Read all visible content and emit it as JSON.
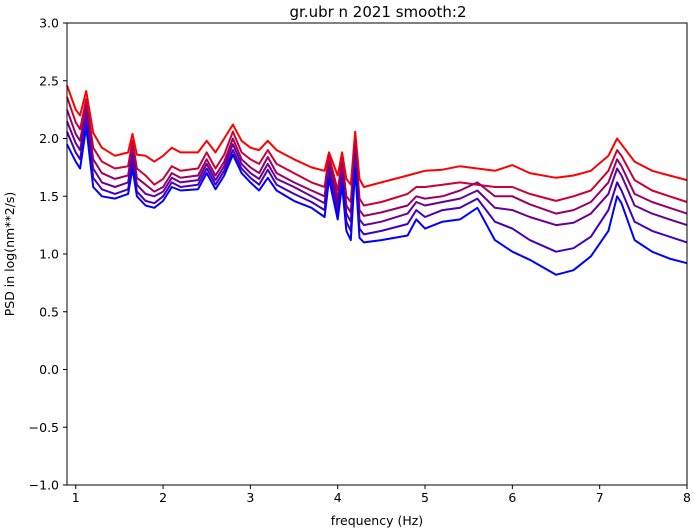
{
  "chart_data": {
    "type": "line",
    "title": "gr.ubr n 2021 smooth:2",
    "xlabel": "frequency (Hz)",
    "ylabel": "PSD in log(nm**2/s)",
    "xlim": [
      0.9,
      8.0
    ],
    "ylim": [
      -1.0,
      3.0
    ],
    "xticks": [
      "1",
      "2",
      "3",
      "4",
      "5",
      "6",
      "7",
      "8"
    ],
    "yticks": [
      "−1.0",
      "−0.5",
      "0.0",
      "0.5",
      "1.0",
      "1.5",
      "2.0",
      "2.5",
      "3.0"
    ],
    "grid": false,
    "legend": "none",
    "series": [
      {
        "color": "#ff0000",
        "x": [
          0.9,
          1.0,
          1.05,
          1.12,
          1.2,
          1.3,
          1.45,
          1.6,
          1.65,
          1.7,
          1.8,
          1.9,
          2.0,
          2.1,
          2.2,
          2.4,
          2.5,
          2.6,
          2.7,
          2.8,
          2.9,
          3.0,
          3.1,
          3.2,
          3.3,
          3.5,
          3.7,
          3.85,
          3.9,
          4.0,
          4.05,
          4.1,
          4.15,
          4.2,
          4.25,
          4.3,
          4.5,
          4.8,
          4.9,
          5.0,
          5.2,
          5.4,
          5.6,
          5.8,
          6.0,
          6.2,
          6.5,
          6.7,
          6.9,
          7.1,
          7.2,
          7.25,
          7.4,
          7.6,
          7.8,
          8.0
        ],
        "y": [
          2.46,
          2.25,
          2.2,
          2.41,
          2.05,
          1.92,
          1.85,
          1.88,
          2.04,
          1.86,
          1.85,
          1.8,
          1.85,
          1.92,
          1.88,
          1.88,
          1.98,
          1.88,
          2.0,
          2.12,
          1.98,
          1.92,
          1.9,
          1.98,
          1.9,
          1.82,
          1.75,
          1.72,
          1.88,
          1.68,
          1.88,
          1.65,
          1.6,
          2.06,
          1.65,
          1.58,
          1.62,
          1.68,
          1.7,
          1.72,
          1.73,
          1.76,
          1.74,
          1.72,
          1.77,
          1.7,
          1.66,
          1.68,
          1.72,
          1.85,
          2.0,
          1.95,
          1.8,
          1.72,
          1.68,
          1.64
        ]
      },
      {
        "color": "#cc0033",
        "x": [
          0.9,
          1.0,
          1.05,
          1.12,
          1.2,
          1.3,
          1.45,
          1.6,
          1.65,
          1.7,
          1.8,
          1.9,
          2.0,
          2.1,
          2.2,
          2.4,
          2.5,
          2.6,
          2.7,
          2.8,
          2.9,
          3.0,
          3.1,
          3.2,
          3.3,
          3.5,
          3.7,
          3.85,
          3.9,
          4.0,
          4.05,
          4.1,
          4.15,
          4.2,
          4.25,
          4.3,
          4.5,
          4.8,
          4.9,
          5.0,
          5.2,
          5.4,
          5.6,
          5.8,
          6.0,
          6.2,
          6.5,
          6.7,
          6.9,
          7.1,
          7.2,
          7.25,
          7.4,
          7.6,
          7.8,
          8.0
        ],
        "y": [
          2.36,
          2.14,
          2.08,
          2.34,
          1.92,
          1.8,
          1.74,
          1.76,
          1.98,
          1.74,
          1.68,
          1.6,
          1.65,
          1.76,
          1.72,
          1.74,
          1.88,
          1.74,
          1.86,
          2.06,
          1.88,
          1.82,
          1.78,
          1.9,
          1.78,
          1.7,
          1.62,
          1.58,
          1.85,
          1.55,
          1.82,
          1.5,
          1.45,
          1.98,
          1.48,
          1.42,
          1.45,
          1.52,
          1.58,
          1.58,
          1.6,
          1.62,
          1.6,
          1.58,
          1.58,
          1.52,
          1.46,
          1.5,
          1.55,
          1.72,
          1.9,
          1.85,
          1.64,
          1.55,
          1.5,
          1.45
        ]
      },
      {
        "color": "#990066",
        "x": [
          0.9,
          1.0,
          1.05,
          1.12,
          1.2,
          1.3,
          1.45,
          1.6,
          1.65,
          1.7,
          1.8,
          1.9,
          2.0,
          2.1,
          2.2,
          2.4,
          2.5,
          2.6,
          2.7,
          2.8,
          2.9,
          3.0,
          3.1,
          3.2,
          3.3,
          3.5,
          3.7,
          3.85,
          3.9,
          4.0,
          4.05,
          4.1,
          4.15,
          4.2,
          4.25,
          4.3,
          4.5,
          4.8,
          4.9,
          5.0,
          5.2,
          5.4,
          5.6,
          5.8,
          6.0,
          6.2,
          6.5,
          6.7,
          6.9,
          7.1,
          7.2,
          7.25,
          7.4,
          7.6,
          7.8,
          8.0
        ],
        "y": [
          2.25,
          2.04,
          1.98,
          2.28,
          1.82,
          1.7,
          1.65,
          1.68,
          1.92,
          1.66,
          1.6,
          1.54,
          1.58,
          1.7,
          1.66,
          1.68,
          1.82,
          1.68,
          1.8,
          2.0,
          1.82,
          1.75,
          1.7,
          1.84,
          1.7,
          1.62,
          1.55,
          1.5,
          1.8,
          1.48,
          1.78,
          1.42,
          1.36,
          1.92,
          1.38,
          1.33,
          1.36,
          1.42,
          1.5,
          1.48,
          1.5,
          1.55,
          1.62,
          1.5,
          1.5,
          1.43,
          1.35,
          1.38,
          1.45,
          1.62,
          1.82,
          1.76,
          1.52,
          1.45,
          1.4,
          1.35
        ]
      },
      {
        "color": "#660099",
        "x": [
          0.9,
          1.0,
          1.05,
          1.12,
          1.2,
          1.3,
          1.45,
          1.6,
          1.65,
          1.7,
          1.8,
          1.9,
          2.0,
          2.1,
          2.2,
          2.4,
          2.5,
          2.6,
          2.7,
          2.8,
          2.9,
          3.0,
          3.1,
          3.2,
          3.3,
          3.5,
          3.7,
          3.85,
          3.9,
          4.0,
          4.05,
          4.1,
          4.15,
          4.2,
          4.25,
          4.3,
          4.5,
          4.8,
          4.9,
          5.0,
          5.2,
          5.4,
          5.6,
          5.8,
          6.0,
          6.2,
          6.5,
          6.7,
          6.9,
          7.1,
          7.2,
          7.25,
          7.4,
          7.6,
          7.8,
          8.0
        ],
        "y": [
          2.15,
          1.96,
          1.9,
          2.22,
          1.74,
          1.62,
          1.58,
          1.62,
          1.86,
          1.6,
          1.52,
          1.5,
          1.54,
          1.66,
          1.62,
          1.64,
          1.78,
          1.64,
          1.76,
          1.95,
          1.78,
          1.7,
          1.65,
          1.78,
          1.65,
          1.58,
          1.5,
          1.44,
          1.75,
          1.42,
          1.72,
          1.35,
          1.28,
          1.86,
          1.3,
          1.25,
          1.28,
          1.35,
          1.45,
          1.42,
          1.45,
          1.48,
          1.55,
          1.4,
          1.38,
          1.32,
          1.25,
          1.27,
          1.35,
          1.52,
          1.74,
          1.68,
          1.42,
          1.35,
          1.3,
          1.25
        ]
      },
      {
        "color": "#4400bb",
        "x": [
          0.9,
          1.0,
          1.05,
          1.12,
          1.2,
          1.3,
          1.45,
          1.6,
          1.65,
          1.7,
          1.8,
          1.9,
          2.0,
          2.1,
          2.2,
          2.4,
          2.5,
          2.6,
          2.7,
          2.8,
          2.9,
          3.0,
          3.1,
          3.2,
          3.3,
          3.5,
          3.7,
          3.85,
          3.9,
          4.0,
          4.05,
          4.1,
          4.15,
          4.2,
          4.25,
          4.3,
          4.5,
          4.8,
          4.9,
          5.0,
          5.2,
          5.4,
          5.6,
          5.8,
          6.0,
          6.2,
          6.5,
          6.7,
          6.9,
          7.1,
          7.2,
          7.25,
          7.4,
          7.6,
          7.8,
          8.0
        ],
        "y": [
          2.06,
          1.88,
          1.82,
          2.16,
          1.66,
          1.56,
          1.52,
          1.56,
          1.8,
          1.54,
          1.46,
          1.44,
          1.5,
          1.62,
          1.58,
          1.6,
          1.74,
          1.6,
          1.72,
          1.9,
          1.74,
          1.66,
          1.6,
          1.73,
          1.6,
          1.52,
          1.45,
          1.38,
          1.7,
          1.36,
          1.66,
          1.28,
          1.2,
          1.8,
          1.22,
          1.17,
          1.2,
          1.26,
          1.38,
          1.32,
          1.38,
          1.4,
          1.48,
          1.28,
          1.22,
          1.12,
          1.02,
          1.05,
          1.15,
          1.38,
          1.62,
          1.55,
          1.28,
          1.2,
          1.15,
          1.1
        ]
      },
      {
        "color": "#0000ff",
        "x": [
          0.9,
          1.0,
          1.05,
          1.12,
          1.2,
          1.3,
          1.45,
          1.6,
          1.65,
          1.7,
          1.8,
          1.9,
          2.0,
          2.1,
          2.2,
          2.4,
          2.5,
          2.6,
          2.7,
          2.8,
          2.9,
          3.0,
          3.1,
          3.2,
          3.3,
          3.5,
          3.7,
          3.85,
          3.9,
          4.0,
          4.05,
          4.1,
          4.15,
          4.2,
          4.25,
          4.3,
          4.5,
          4.8,
          4.9,
          5.0,
          5.2,
          5.4,
          5.6,
          5.8,
          6.0,
          6.2,
          6.5,
          6.7,
          6.9,
          7.1,
          7.2,
          7.25,
          7.4,
          7.6,
          7.8,
          8.0
        ],
        "y": [
          1.95,
          1.8,
          1.74,
          2.1,
          1.58,
          1.5,
          1.48,
          1.52,
          1.74,
          1.5,
          1.42,
          1.4,
          1.46,
          1.58,
          1.55,
          1.56,
          1.7,
          1.56,
          1.68,
          1.86,
          1.7,
          1.62,
          1.55,
          1.66,
          1.55,
          1.46,
          1.4,
          1.32,
          1.65,
          1.3,
          1.6,
          1.2,
          1.12,
          1.74,
          1.14,
          1.1,
          1.12,
          1.16,
          1.3,
          1.22,
          1.28,
          1.3,
          1.4,
          1.12,
          1.02,
          0.95,
          0.82,
          0.86,
          0.98,
          1.2,
          1.5,
          1.44,
          1.12,
          1.02,
          0.96,
          0.92
        ]
      }
    ]
  }
}
